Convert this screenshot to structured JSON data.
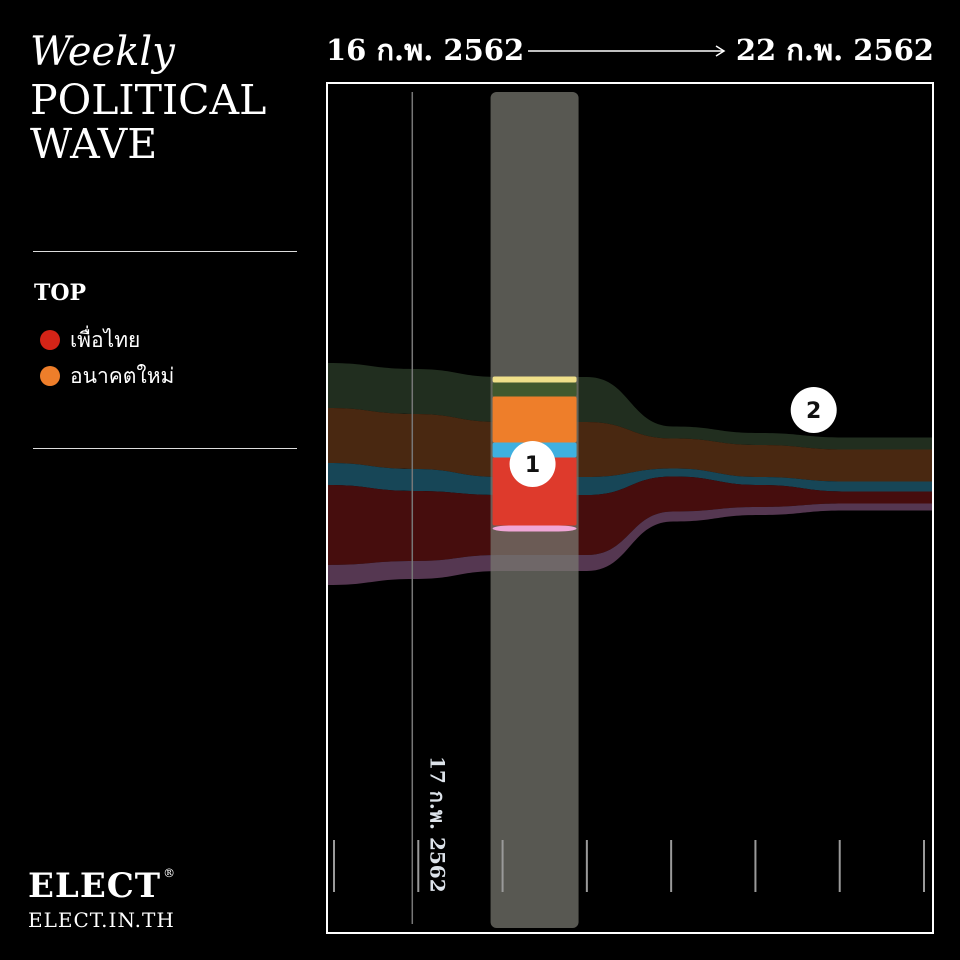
{
  "header": {
    "weekly": "Weekly",
    "title_line1": "POLITICAL",
    "title_line2": "WAVE",
    "date_start": "16 ก.พ. 2562",
    "date_end": "22 ก.พ. 2562"
  },
  "legend": {
    "title": "TOP",
    "items": [
      {
        "label": "เพื่อไทย",
        "color": "#d42417"
      },
      {
        "label": "อนาคตใหม่",
        "color": "#ee7e2a"
      }
    ]
  },
  "chart_data": {
    "type": "area",
    "subtype": "streamgraph",
    "title": "",
    "day_label": "17 ก.พ. 2562",
    "highlight_index": 2,
    "markers": [
      {
        "label": "1",
        "index": 2.5
      },
      {
        "label": "2",
        "index": 6
      }
    ],
    "tick_count": 8,
    "series": [
      {
        "name": "",
        "color": "#233021",
        "values": [
          45,
          45,
          45,
          45,
          12,
          12,
          12,
          12
        ]
      },
      {
        "name": "",
        "color": "#4d2a12",
        "values": [
          55,
          55,
          55,
          55,
          30,
          32,
          32,
          32
        ]
      },
      {
        "name": "",
        "color": "#184a5c",
        "values": [
          22,
          22,
          18,
          18,
          8,
          8,
          10,
          10
        ]
      },
      {
        "name": "",
        "color": "#4a0e0e",
        "values": [
          80,
          70,
          60,
          60,
          35,
          22,
          12,
          12
        ]
      },
      {
        "name": "",
        "color": "#5a3a55",
        "values": [
          20,
          18,
          16,
          16,
          10,
          8,
          7,
          7
        ]
      }
    ],
    "highlight_series": [
      {
        "color": "#f0e08a",
        "value": 6
      },
      {
        "color": "#41592e",
        "value": 14
      },
      {
        "color": "#ee7e2a",
        "value": 46
      },
      {
        "color": "#3fb0e0",
        "value": 15
      },
      {
        "color": "#de3a2c",
        "value": 68
      },
      {
        "color": "#f0a6d6",
        "value": 6
      }
    ]
  },
  "brand": {
    "logo": "ELECT",
    "reg": "®",
    "url": "ELECT.IN.TH"
  }
}
